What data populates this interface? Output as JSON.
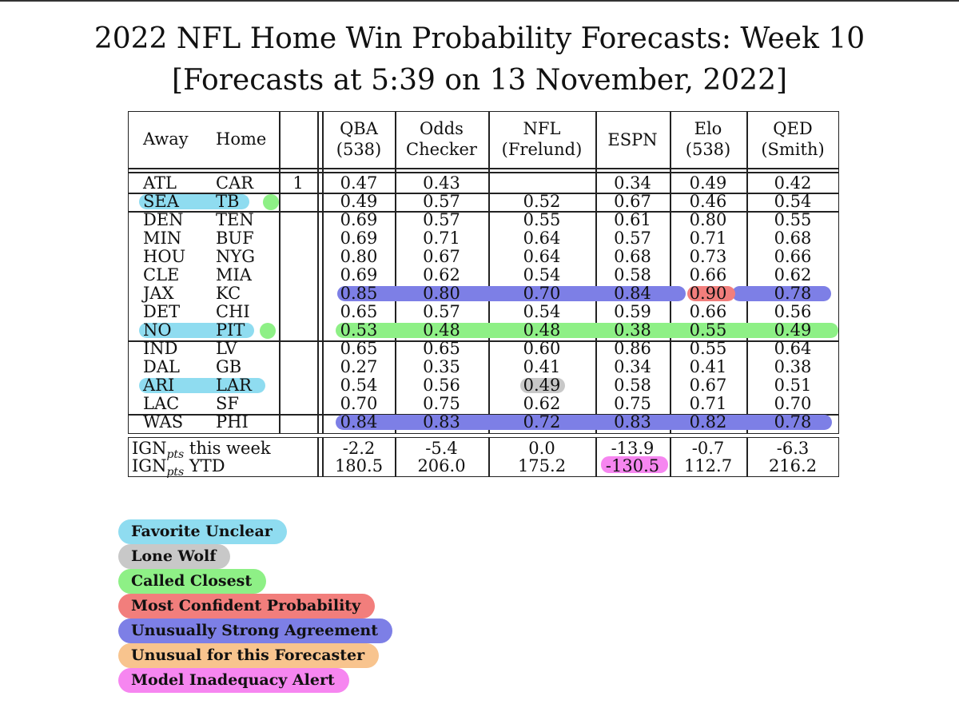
{
  "title_line1": "2022 NFL Home Win Probability Forecasts:  Week 10",
  "title_line2": "[Forecasts at 5:39 on 13 November, 2022]",
  "colors": {
    "favorite_unclear": "#8fdcf0",
    "lone_wolf": "#c8c8c8",
    "called_closest": "#8ef086",
    "most_confident": "#f27e7c",
    "strong_agreement": "#7d7fe6",
    "unusual_forecaster": "#f8c48e",
    "model_inadequacy": "#f686f0"
  },
  "headers": {
    "away": "Away",
    "home": "Home",
    "qba": [
      "QBA",
      "(538)"
    ],
    "odds": [
      "Odds",
      "Checker"
    ],
    "nfl": [
      "NFL",
      "(Frelund)"
    ],
    "espn": [
      "ESPN"
    ],
    "elo": [
      "Elo",
      "(538)"
    ],
    "qed": [
      "QED",
      "(Smith)"
    ]
  },
  "rows": [
    {
      "away": "ATL",
      "home": "CAR",
      "note": "1",
      "qba": "0.47",
      "odds": "0.43",
      "nfl": "",
      "espn": "0.34",
      "elo": "0.49",
      "qed": "0.42"
    },
    {
      "away": "SEA",
      "home": "TB",
      "note": "",
      "qba": "0.49",
      "odds": "0.57",
      "nfl": "0.52",
      "espn": "0.67",
      "elo": "0.46",
      "qed": "0.54"
    },
    {
      "away": "DEN",
      "home": "TEN",
      "note": "",
      "qba": "0.69",
      "odds": "0.57",
      "nfl": "0.55",
      "espn": "0.61",
      "elo": "0.80",
      "qed": "0.55"
    },
    {
      "away": "MIN",
      "home": "BUF",
      "note": "",
      "qba": "0.69",
      "odds": "0.71",
      "nfl": "0.64",
      "espn": "0.57",
      "elo": "0.71",
      "qed": "0.68"
    },
    {
      "away": "HOU",
      "home": "NYG",
      "note": "",
      "qba": "0.80",
      "odds": "0.67",
      "nfl": "0.64",
      "espn": "0.68",
      "elo": "0.73",
      "qed": "0.66"
    },
    {
      "away": "CLE",
      "home": "MIA",
      "note": "",
      "qba": "0.69",
      "odds": "0.62",
      "nfl": "0.54",
      "espn": "0.58",
      "elo": "0.66",
      "qed": "0.62"
    },
    {
      "away": "JAX",
      "home": "KC",
      "note": "",
      "qba": "0.85",
      "odds": "0.80",
      "nfl": "0.70",
      "espn": "0.84",
      "elo": "0.90",
      "qed": "0.78"
    },
    {
      "away": "DET",
      "home": "CHI",
      "note": "",
      "qba": "0.65",
      "odds": "0.57",
      "nfl": "0.54",
      "espn": "0.59",
      "elo": "0.66",
      "qed": "0.56"
    },
    {
      "away": "NO",
      "home": "PIT",
      "note": "",
      "qba": "0.53",
      "odds": "0.48",
      "nfl": "0.48",
      "espn": "0.38",
      "elo": "0.55",
      "qed": "0.49"
    },
    {
      "away": "IND",
      "home": "LV",
      "note": "",
      "qba": "0.65",
      "odds": "0.65",
      "nfl": "0.60",
      "espn": "0.86",
      "elo": "0.55",
      "qed": "0.64"
    },
    {
      "away": "DAL",
      "home": "GB",
      "note": "",
      "qba": "0.27",
      "odds": "0.35",
      "nfl": "0.41",
      "espn": "0.34",
      "elo": "0.41",
      "qed": "0.38"
    },
    {
      "away": "ARI",
      "home": "LAR",
      "note": "",
      "qba": "0.54",
      "odds": "0.56",
      "nfl": "0.49",
      "espn": "0.58",
      "elo": "0.67",
      "qed": "0.51"
    },
    {
      "away": "LAC",
      "home": "SF",
      "note": "",
      "qba": "0.70",
      "odds": "0.75",
      "nfl": "0.62",
      "espn": "0.75",
      "elo": "0.71",
      "qed": "0.70"
    },
    {
      "away": "WAS",
      "home": "PHI",
      "note": "",
      "qba": "0.84",
      "odds": "0.83",
      "nfl": "0.72",
      "espn": "0.83",
      "elo": "0.82",
      "qed": "0.78"
    }
  ],
  "summary": [
    {
      "label_main": "IGN",
      "label_sub": "pts",
      "label_rest": " this week",
      "qba": "-2.2",
      "odds": "-5.4",
      "nfl": "0.0",
      "espn": "-13.9",
      "elo": "-0.7",
      "qed": "-6.3"
    },
    {
      "label_main": "IGN",
      "label_sub": "pts",
      "label_rest": " YTD",
      "qba": "180.5",
      "odds": "206.0",
      "nfl": "175.2",
      "espn": "-130.5",
      "elo": "112.7",
      "qed": "216.2"
    }
  ],
  "legend": [
    {
      "label": "Favorite Unclear",
      "color": "#8fdcf0"
    },
    {
      "label": "Lone Wolf",
      "color": "#c8c8c8"
    },
    {
      "label": "Called Closest",
      "color": "#8ef086"
    },
    {
      "label": "Most Confident Probability",
      "color": "#f27e7c"
    },
    {
      "label": "Unusually Strong Agreement",
      "color": "#7d7fe6"
    },
    {
      "label": "Unusual for this Forecaster",
      "color": "#f8c48e"
    },
    {
      "label": "Model Inadequacy Alert",
      "color": "#f686f0"
    }
  ]
}
